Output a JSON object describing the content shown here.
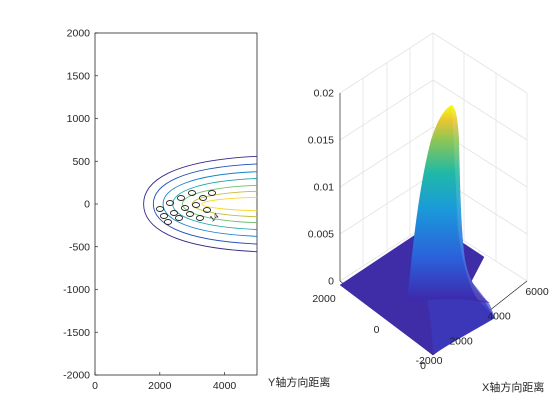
{
  "chart_data": [
    {
      "type": "contour",
      "xlim": [
        0,
        5000
      ],
      "ylim": [
        -2000,
        2000
      ],
      "x_ticks": [
        "0",
        "2000",
        "4000"
      ],
      "y_ticks": [
        "2000",
        "1500",
        "1000",
        "500",
        "0",
        "-500",
        "-1000",
        "-1500",
        "-2000"
      ],
      "contour_label_text": "14",
      "contour_levels": [
        {
          "x0": 1500,
          "y_at_right": 560,
          "color": "#352a87"
        },
        {
          "x0": 1800,
          "y_at_right": 470,
          "color": "#1f4fb8"
        },
        {
          "x0": 2100,
          "y_at_right": 380,
          "color": "#1581c9"
        },
        {
          "x0": 2400,
          "y_at_right": 300,
          "color": "#19a6a5"
        },
        {
          "x0": 2700,
          "y_at_right": 220,
          "color": "#6cbf6b"
        },
        {
          "x0": 3000,
          "y_at_right": 150,
          "color": "#c4bc3c"
        },
        {
          "x0": 3300,
          "y_at_right": 80,
          "color": "#f8d92a"
        }
      ]
    },
    {
      "type": "surface",
      "z_ticks": [
        "0",
        "0.005",
        "0.01",
        "0.015",
        "0.02"
      ],
      "zlim": [
        0,
        0.02
      ],
      "x_ticks": [
        "0",
        "2000",
        "4000",
        "6000"
      ],
      "xlim": [
        0,
        6000
      ],
      "y_ticks": [
        "2000",
        "0",
        "-2000"
      ],
      "ylim": [
        -2000,
        2000
      ],
      "xlabel": "X轴方向距离",
      "ylabel": "Y轴方向距离",
      "peak_z": 0.0185,
      "colors": {
        "low": "#3e26a8",
        "mid": "#17b9b4",
        "high": "#f9fb0e"
      }
    }
  ]
}
